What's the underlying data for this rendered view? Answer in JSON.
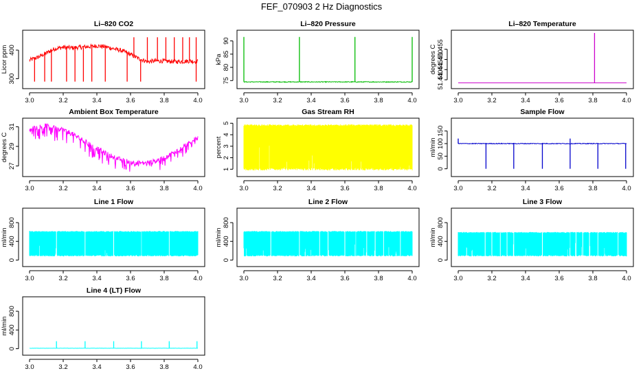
{
  "figure": {
    "title": "FEF_070903  2 Hz Diagnostics"
  },
  "chart_data": [
    {
      "id": "co2",
      "type": "line",
      "title": "Li–820 CO2",
      "ylabel": "Licor ppm",
      "color": "#ff0000",
      "xlim": [
        3.0,
        4.0
      ],
      "ylim": [
        275,
        460
      ],
      "xticks": [
        3.0,
        3.2,
        3.4,
        3.6,
        3.8,
        4.0
      ],
      "xtick_labels": [
        "3.0",
        "3.2",
        "3.4",
        "3.6",
        "3.8",
        "4.0"
      ],
      "yticks": [
        300,
        400
      ],
      "ytick_labels": [
        "300",
        "400"
      ],
      "series": [
        {
          "x": [
            3.0,
            3.05,
            3.1,
            3.15,
            3.2,
            3.25,
            3.3,
            3.35,
            3.4,
            3.45,
            3.5,
            3.55,
            3.6,
            3.65,
            3.7,
            3.75,
            3.8,
            3.85,
            3.9,
            3.95,
            4.0
          ],
          "values": [
            365,
            375,
            390,
            405,
            410,
            408,
            410,
            412,
            415,
            412,
            405,
            398,
            385,
            370,
            360,
            362,
            362,
            360,
            360,
            362,
            360
          ],
          "noise": 15,
          "spikes_down": [
            3.03,
            3.09,
            3.13,
            3.22,
            3.27,
            3.32,
            3.37,
            3.45,
            3.58,
            3.66,
            3.99
          ],
          "spike_down_to": 290,
          "spikes_up": [
            3.62,
            3.7,
            3.76,
            3.81,
            3.86,
            3.91,
            3.95,
            3.99
          ],
          "spike_up_to": 445
        }
      ]
    },
    {
      "id": "pressure",
      "type": "line",
      "title": "Li–820 Pressure",
      "ylabel": "kPa",
      "color": "#00bb00",
      "xlim": [
        3.0,
        4.0
      ],
      "ylim": [
        73,
        93
      ],
      "xticks": [
        3.0,
        3.2,
        3.4,
        3.6,
        3.8,
        4.0
      ],
      "xtick_labels": [
        "3.0",
        "3.2",
        "3.4",
        "3.6",
        "3.8",
        "4.0"
      ],
      "yticks": [
        75,
        80,
        85,
        90
      ],
      "ytick_labels": [
        "75",
        "80",
        "85",
        "90"
      ],
      "series": [
        {
          "x": [
            3.0,
            4.0
          ],
          "values": [
            74.5,
            74.5
          ],
          "noise": 0.3,
          "spikes_up": [
            3.0,
            3.33,
            3.66,
            4.0
          ],
          "spike_up_to": 91.5
        }
      ]
    },
    {
      "id": "temperature",
      "type": "line",
      "title": "Li–820 Temperature",
      "ylabel": "degrees C",
      "color": "#cc00cc",
      "xlim": [
        3.0,
        4.0
      ],
      "ylim": [
        51.437,
        51.463
      ],
      "xticks": [
        3.0,
        3.2,
        3.4,
        3.6,
        3.8,
        4.0
      ],
      "xtick_labels": [
        "3.0",
        "3.2",
        "3.4",
        "3.6",
        "3.8",
        "4.0"
      ],
      "yticks": [
        51.44,
        51.445,
        51.45,
        51.455
      ],
      "ytick_labels": [
        "51.440",
        "51.445",
        "51.450",
        "51.455"
      ],
      "series": [
        {
          "x": [
            3.0,
            4.0
          ],
          "values": [
            51.4385,
            51.4385
          ],
          "noise": 0,
          "spikes_up": [
            3.81
          ],
          "spike_up_to": 51.463
        }
      ]
    },
    {
      "id": "ambient",
      "type": "line",
      "title": "Ambient Box Temperature",
      "ylabel": "degrees C",
      "color": "#ff00ff",
      "xlim": [
        3.0,
        4.0
      ],
      "ylim": [
        26.2,
        31.6
      ],
      "xticks": [
        3.0,
        3.2,
        3.4,
        3.6,
        3.8,
        4.0
      ],
      "xtick_labels": [
        "3.0",
        "3.2",
        "3.4",
        "3.6",
        "3.8",
        "4.0"
      ],
      "yticks": [
        27,
        29,
        31
      ],
      "ytick_labels": [
        "27",
        "29",
        "31"
      ],
      "series": [
        {
          "x": [
            3.0,
            3.05,
            3.1,
            3.15,
            3.2,
            3.25,
            3.3,
            3.35,
            3.4,
            3.45,
            3.5,
            3.55,
            3.6,
            3.65,
            3.7,
            3.75,
            3.8,
            3.85,
            3.9,
            3.95,
            4.0
          ],
          "values": [
            30.7,
            31.0,
            31.1,
            30.9,
            30.7,
            30.3,
            29.8,
            29.3,
            28.8,
            28.3,
            27.9,
            27.6,
            27.4,
            27.3,
            27.3,
            27.5,
            27.8,
            28.3,
            28.8,
            29.4,
            29.9
          ],
          "noise": 0.5,
          "drop": 1.2
        }
      ]
    },
    {
      "id": "rh",
      "type": "line",
      "title": "Gas Stream RH",
      "ylabel": "percent",
      "color": "#ffff00",
      "xlim": [
        3.0,
        4.0
      ],
      "ylim": [
        0.6,
        5.2
      ],
      "xticks": [
        3.0,
        3.2,
        3.4,
        3.6,
        3.8,
        4.0
      ],
      "xtick_labels": [
        "3.0",
        "3.2",
        "3.4",
        "3.6",
        "3.8",
        "4.0"
      ],
      "yticks": [
        1,
        2,
        3,
        4,
        5
      ],
      "ytick_labels": [
        "1",
        "2",
        "3",
        "4",
        "5"
      ],
      "series": [
        {
          "band_low": 0.9,
          "band_high": 4.9
        }
      ]
    },
    {
      "id": "sample",
      "type": "line",
      "title": "Sample Flow",
      "ylabel": "ml/min",
      "color": "#0000cc",
      "xlim": [
        3.0,
        4.0
      ],
      "ylim": [
        -20,
        190
      ],
      "xticks": [
        3.0,
        3.2,
        3.4,
        3.6,
        3.8,
        4.0
      ],
      "xtick_labels": [
        "3.0",
        "3.2",
        "3.4",
        "3.6",
        "3.8",
        "4.0"
      ],
      "yticks": [
        0,
        50,
        100,
        150
      ],
      "ytick_labels": [
        "0",
        "50",
        "100",
        "150"
      ],
      "series": [
        {
          "x": [
            3.0,
            4.0
          ],
          "values": [
            100,
            100
          ],
          "noise": 3,
          "spikes_down": [
            3.165,
            3.33,
            3.5,
            3.665,
            3.83,
            3.995
          ],
          "spike_down_to": 0,
          "spikes_up": [
            3.0,
            3.665
          ],
          "spike_up_to": 120
        }
      ]
    },
    {
      "id": "line1",
      "type": "line",
      "title": "Line 1 Flow",
      "ylabel": "ml/min",
      "color": "#00ffff",
      "xlim": [
        3.0,
        4.0
      ],
      "ylim": [
        -80,
        1050
      ],
      "xticks": [
        3.0,
        3.2,
        3.4,
        3.6,
        3.8,
        4.0
      ],
      "xtick_labels": [
        "3.0",
        "3.2",
        "3.4",
        "3.6",
        "3.8",
        "4.0"
      ],
      "yticks": [
        0,
        400,
        800
      ],
      "ytick_labels": [
        "0",
        "400",
        "800"
      ],
      "series": [
        {
          "band_low": 80,
          "band_high": 620,
          "gaps": [
            3.16,
            3.33,
            3.5,
            3.665,
            3.83
          ]
        }
      ]
    },
    {
      "id": "line2",
      "type": "line",
      "title": "Line 2 Flow",
      "ylabel": "ml/min",
      "color": "#00ffff",
      "xlim": [
        3.0,
        4.0
      ],
      "ylim": [
        -80,
        1050
      ],
      "xticks": [
        3.0,
        3.2,
        3.4,
        3.6,
        3.8,
        4.0
      ],
      "xtick_labels": [
        "3.0",
        "3.2",
        "3.4",
        "3.6",
        "3.8",
        "4.0"
      ],
      "yticks": [
        0,
        400,
        800
      ],
      "ytick_labels": [
        "0",
        "400",
        "800"
      ],
      "series": [
        {
          "band_low": 80,
          "band_high": 620,
          "gaps": [
            3.16,
            3.33,
            3.45,
            3.5,
            3.6,
            3.665,
            3.73,
            3.78,
            3.83,
            3.93
          ]
        }
      ]
    },
    {
      "id": "line3",
      "type": "line",
      "title": "Line 3 Flow",
      "ylabel": "ml/min",
      "color": "#00ffff",
      "xlim": [
        3.0,
        4.0
      ],
      "ylim": [
        -80,
        1050
      ],
      "xticks": [
        3.0,
        3.2,
        3.4,
        3.6,
        3.8,
        4.0
      ],
      "xtick_labels": [
        "3.0",
        "3.2",
        "3.4",
        "3.6",
        "3.8",
        "4.0"
      ],
      "yticks": [
        0,
        400,
        800
      ],
      "ytick_labels": [
        "0",
        "400",
        "800"
      ],
      "series": [
        {
          "band_low": 80,
          "band_high": 600,
          "gaps": [
            3.16,
            3.2,
            3.25,
            3.29,
            3.33,
            3.5,
            3.665,
            3.7,
            3.74,
            3.78,
            3.83,
            3.95
          ]
        }
      ]
    },
    {
      "id": "line4",
      "type": "line",
      "title": "Line 4 (LT) Flow",
      "ylabel": "ml/min",
      "color": "#00ffff",
      "xlim": [
        3.0,
        4.0
      ],
      "ylim": [
        -80,
        1050
      ],
      "xticks": [
        3.0,
        3.2,
        3.4,
        3.6,
        3.8,
        4.0
      ],
      "xtick_labels": [
        "3.0",
        "3.2",
        "3.4",
        "3.6",
        "3.8",
        "4.0"
      ],
      "yticks": [
        0,
        400,
        800
      ],
      "ytick_labels": [
        "0",
        "400",
        "800"
      ],
      "series": [
        {
          "x": [
            3.0,
            4.0
          ],
          "values": [
            10,
            10
          ],
          "noise": 5,
          "spikes_up": [
            3.16,
            3.33,
            3.5,
            3.665,
            3.83,
            3.995
          ],
          "spike_up_to": 160
        }
      ]
    }
  ]
}
